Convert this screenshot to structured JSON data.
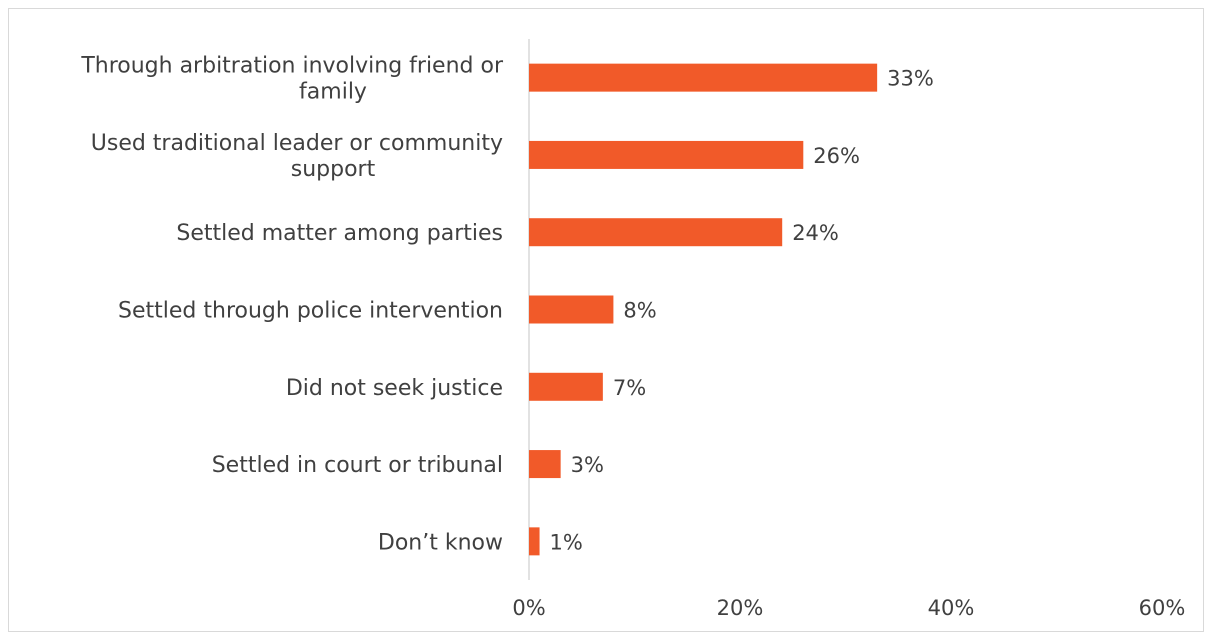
{
  "chart_data": {
    "type": "bar",
    "orientation": "horizontal",
    "title": "",
    "xlabel": "",
    "ylabel": "",
    "categories": [
      [
        "Through arbitration involving friend or",
        "family"
      ],
      [
        "Used traditional leader or community",
        "support"
      ],
      [
        "Settled matter among parties"
      ],
      [
        "Settled through police intervention"
      ],
      [
        "Did not seek justice"
      ],
      [
        "Settled in court or tribunal"
      ],
      [
        "Don’t know"
      ]
    ],
    "values": [
      33,
      26,
      24,
      8,
      7,
      3,
      1
    ],
    "value_labels": [
      "33%",
      "26%",
      "24%",
      "8%",
      "7%",
      "3%",
      "1%"
    ],
    "xlim": [
      0,
      60
    ],
    "x_ticks": [
      0,
      20,
      40,
      60
    ],
    "x_tick_labels": [
      "0%",
      "20%",
      "40%",
      "60%"
    ],
    "grid": false,
    "legend": "none",
    "colors": {
      "bar": "#F15A29",
      "axis": "#d9d9d9",
      "text": "#404040"
    }
  }
}
